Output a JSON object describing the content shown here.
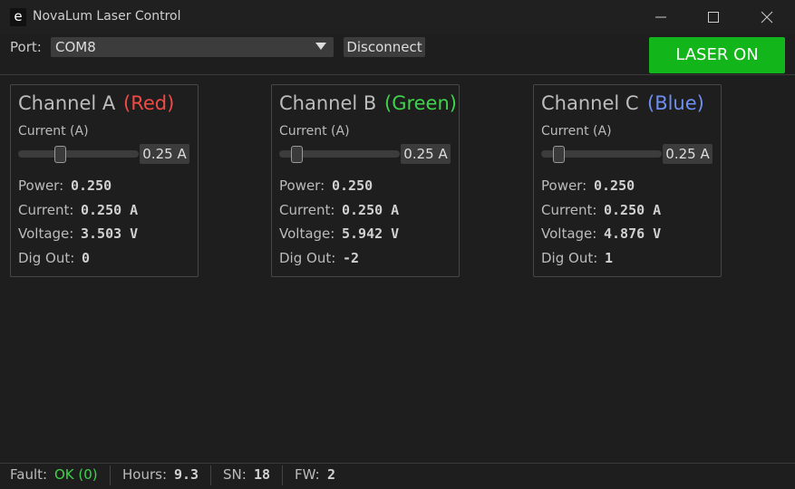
{
  "window": {
    "icon": "e",
    "title": "NovaLum Laser Control"
  },
  "toolbar": {
    "port_label": "Port:",
    "port": "COM8",
    "disconnect": "Disconnect",
    "laser": "LASER ON"
  },
  "channels": [
    {
      "name": "Channel A",
      "color_name": "(Red)",
      "current_label": "Current (A)",
      "slider_value": "0.25 A",
      "readouts": [
        {
          "label": "Power:",
          "value": "0.250"
        },
        {
          "label": "Current:",
          "value": "0.250 A"
        },
        {
          "label": "Voltage:",
          "value": "3.503 V"
        },
        {
          "label": "Dig Out:",
          "value": "0"
        }
      ]
    },
    {
      "name": "Channel B",
      "color_name": "(Green)",
      "current_label": "Current (A)",
      "slider_value": "0.25 A",
      "readouts": [
        {
          "label": "Power:",
          "value": "0.250"
        },
        {
          "label": "Current:",
          "value": "0.250 A"
        },
        {
          "label": "Voltage:",
          "value": "5.942 V"
        },
        {
          "label": "Dig Out:",
          "value": "-2"
        }
      ]
    },
    {
      "name": "Channel C",
      "color_name": "(Blue)",
      "current_label": "Current (A)",
      "slider_value": "0.25 A",
      "readouts": [
        {
          "label": "Power:",
          "value": "0.250"
        },
        {
          "label": "Current:",
          "value": "0.250 A"
        },
        {
          "label": "Voltage:",
          "value": "4.876 V"
        },
        {
          "label": "Dig Out:",
          "value": "1"
        }
      ]
    }
  ],
  "status": [
    {
      "label": "Fault:",
      "value": "OK (0)"
    },
    {
      "label": "Hours:",
      "value": "9.3"
    },
    {
      "label": "SN:",
      "value": "18"
    },
    {
      "label": "FW:",
      "value": "2"
    }
  ]
}
